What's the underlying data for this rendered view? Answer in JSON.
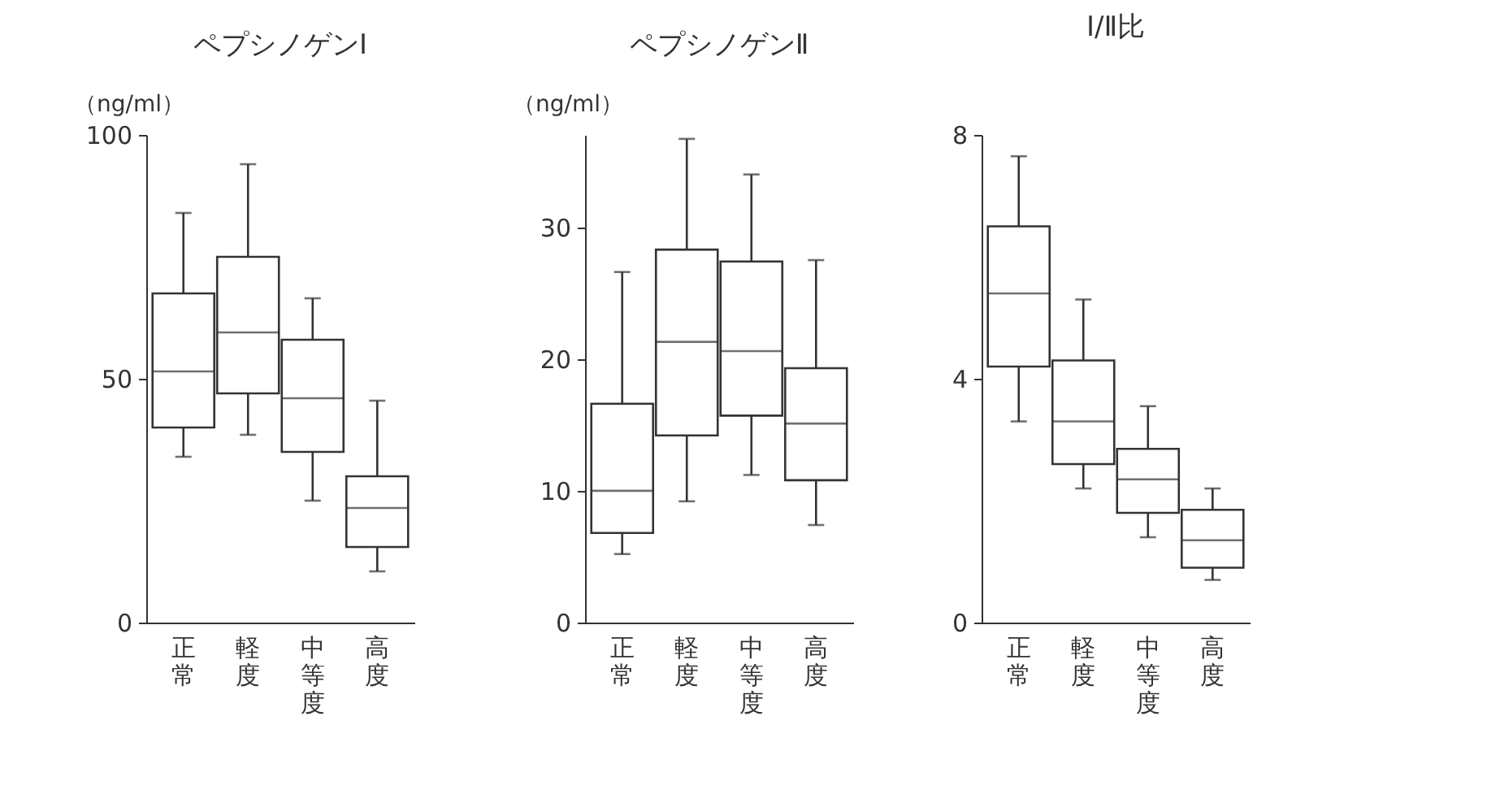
{
  "chart_data": [
    {
      "type": "box",
      "title": "ペプシノゲンⅠ",
      "ylabel": "（ng/ml）",
      "categories": [
        "正常",
        "軽度",
        "中等度",
        "高度"
      ],
      "ylim": [
        0,
        100
      ],
      "yticks": [
        0,
        50,
        100
      ],
      "boxes": [
        {
          "low": 34,
          "q1": 40,
          "median": 51.5,
          "q3": 67.5,
          "high": 84
        },
        {
          "low": 38.5,
          "q1": 47,
          "median": 59.5,
          "q3": 75,
          "high": 94
        },
        {
          "low": 25,
          "q1": 35,
          "median": 46,
          "q3": 58,
          "high": 66.5
        },
        {
          "low": 10.5,
          "q1": 15.5,
          "median": 23.5,
          "q3": 30,
          "high": 45.5
        }
      ]
    },
    {
      "type": "box",
      "title": "ペプシノゲンⅡ",
      "ylabel": "（ng/ml）",
      "categories": [
        "正常",
        "軽度",
        "中等度",
        "高度"
      ],
      "ylim": [
        0,
        37
      ],
      "yticks": [
        0,
        10,
        20,
        30
      ],
      "boxes": [
        {
          "low": 5.2,
          "q1": 6.8,
          "median": 10,
          "q3": 16.6,
          "high": 26.6
        },
        {
          "low": 9.2,
          "q1": 14.2,
          "median": 21.3,
          "q3": 28.3,
          "high": 36.7
        },
        {
          "low": 11.2,
          "q1": 15.7,
          "median": 20.6,
          "q3": 27.4,
          "high": 34
        },
        {
          "low": 7.4,
          "q1": 10.8,
          "median": 15.1,
          "q3": 19.3,
          "high": 27.5
        }
      ]
    },
    {
      "type": "box",
      "title": "Ⅰ/Ⅱ比",
      "categories": [
        "正常",
        "軽度",
        "中等度",
        "高度"
      ],
      "ylim": [
        0,
        8
      ],
      "yticks": [
        0,
        4,
        8
      ],
      "boxes": [
        {
          "low": 3.3,
          "q1": 4.2,
          "median": 5.4,
          "q3": 6.5,
          "high": 7.65
        },
        {
          "low": 2.2,
          "q1": 2.6,
          "median": 3.3,
          "q3": 4.3,
          "high": 5.3
        },
        {
          "low": 1.4,
          "q1": 1.8,
          "median": 2.35,
          "q3": 2.85,
          "high": 3.55
        },
        {
          "low": 0.7,
          "q1": 0.9,
          "median": 1.35,
          "q3": 1.85,
          "high": 2.2
        }
      ]
    }
  ]
}
